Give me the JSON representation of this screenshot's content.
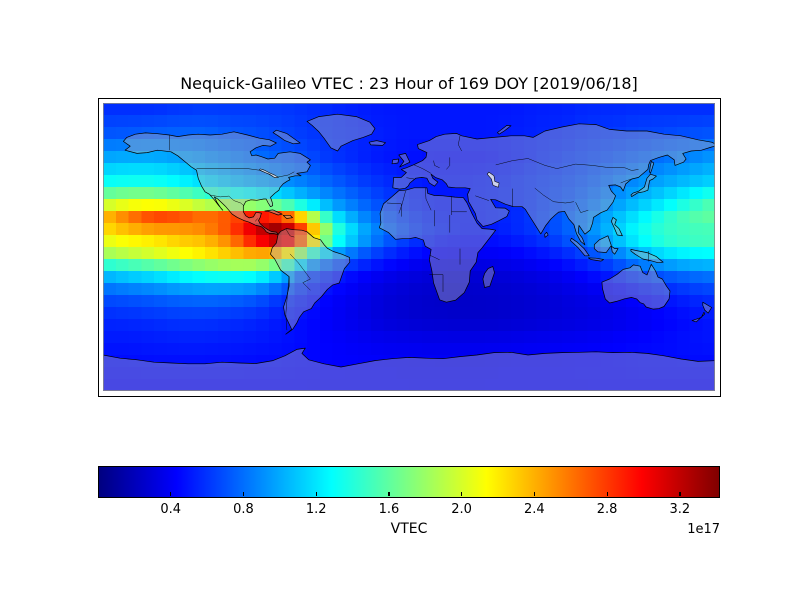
{
  "figure": {
    "title": "Nequick-Galileo VTEC : 23 Hour of 169 DOY [2019/06/18]"
  },
  "chart_data": {
    "type": "heatmap",
    "title": "Nequick-Galileo VTEC : 23 Hour of 169 DOY [2019/06/18]",
    "projection": "equirectangular-world-map",
    "lon_range": [
      -180,
      180
    ],
    "lat_range": [
      -90,
      90
    ],
    "cell_size_deg": 7.5,
    "colorbar": {
      "label": "VTEC",
      "offset_label": "1e17",
      "ticks": [
        0.4,
        0.8,
        1.2,
        1.6,
        2.0,
        2.4,
        2.8,
        3.2
      ],
      "vmin": 0.0,
      "vmax": 3.41,
      "colormap": "jet",
      "jet_stops": [
        [
          "0%",
          "#000080"
        ],
        [
          "12.5%",
          "#0000ff"
        ],
        [
          "37.5%",
          "#00ffff"
        ],
        [
          "62.5%",
          "#ffff00"
        ],
        [
          "87.5%",
          "#ff0000"
        ],
        [
          "100%",
          "#800000"
        ]
      ]
    },
    "grid": {
      "value_scale": "1e17",
      "lons": [
        -180,
        -165,
        -150,
        -135,
        -120,
        -105,
        -90,
        -75,
        -60,
        -45,
        -30,
        -15,
        0,
        15,
        30,
        45,
        60,
        75,
        90,
        105,
        120,
        135,
        150,
        165,
        180
      ],
      "lats": [
        90,
        70,
        55,
        40,
        28,
        20,
        12,
        4,
        -6,
        -16,
        -30,
        -45,
        -60,
        -75,
        -90
      ],
      "values": [
        [
          0.55,
          0.55,
          0.55,
          0.58,
          0.6,
          0.6,
          0.6,
          0.6,
          0.58,
          0.55,
          0.52,
          0.5,
          0.5,
          0.5,
          0.5,
          0.5,
          0.5,
          0.52,
          0.53,
          0.55,
          0.55,
          0.56,
          0.56,
          0.55,
          0.55
        ],
        [
          0.72,
          0.73,
          0.75,
          0.76,
          0.76,
          0.72,
          0.7,
          0.66,
          0.62,
          0.58,
          0.55,
          0.52,
          0.5,
          0.5,
          0.5,
          0.5,
          0.52,
          0.54,
          0.56,
          0.6,
          0.62,
          0.65,
          0.67,
          0.7,
          0.72
        ],
        [
          1.0,
          1.02,
          1.02,
          0.98,
          0.92,
          0.86,
          0.8,
          0.75,
          0.68,
          0.6,
          0.55,
          0.5,
          0.48,
          0.46,
          0.46,
          0.46,
          0.5,
          0.55,
          0.6,
          0.65,
          0.7,
          0.76,
          0.82,
          0.88,
          0.95
        ],
        [
          1.32,
          1.35,
          1.35,
          1.28,
          1.18,
          1.08,
          1.0,
          0.93,
          0.85,
          0.75,
          0.65,
          0.58,
          0.53,
          0.5,
          0.5,
          0.52,
          0.55,
          0.6,
          0.65,
          0.72,
          0.82,
          0.92,
          1.0,
          1.08,
          1.15
        ],
        [
          1.85,
          1.95,
          1.95,
          1.85,
          1.7,
          1.55,
          1.45,
          1.3,
          1.1,
          0.92,
          0.78,
          0.65,
          0.55,
          0.5,
          0.5,
          0.52,
          0.55,
          0.6,
          0.68,
          0.78,
          0.92,
          1.06,
          1.2,
          1.38,
          1.55
        ],
        [
          2.35,
          2.6,
          2.8,
          2.75,
          2.6,
          2.7,
          2.9,
          2.7,
          2.0,
          1.2,
          0.9,
          0.72,
          0.6,
          0.52,
          0.5,
          0.52,
          0.55,
          0.62,
          0.72,
          0.85,
          1.02,
          1.2,
          1.4,
          1.55,
          1.62
        ],
        [
          2.25,
          2.4,
          2.5,
          2.5,
          2.55,
          2.75,
          3.15,
          3.35,
          2.6,
          1.5,
          1.05,
          0.8,
          0.65,
          0.55,
          0.5,
          0.5,
          0.55,
          0.62,
          0.72,
          0.88,
          1.08,
          1.3,
          1.45,
          1.5,
          1.52
        ],
        [
          2.05,
          2.15,
          2.2,
          2.3,
          2.35,
          2.55,
          2.95,
          3.25,
          2.5,
          1.4,
          1.0,
          0.75,
          0.6,
          0.5,
          0.46,
          0.46,
          0.5,
          0.56,
          0.66,
          0.82,
          1.02,
          1.25,
          1.42,
          1.48,
          1.5
        ],
        [
          1.75,
          1.85,
          1.95,
          2.05,
          2.15,
          2.25,
          2.3,
          2.15,
          1.3,
          0.9,
          0.7,
          0.55,
          0.46,
          0.4,
          0.38,
          0.38,
          0.4,
          0.45,
          0.52,
          0.62,
          0.78,
          0.98,
          1.12,
          1.2,
          1.22
        ],
        [
          1.1,
          1.18,
          1.25,
          1.35,
          1.42,
          1.45,
          1.4,
          1.15,
          0.7,
          0.55,
          0.45,
          0.38,
          0.33,
          0.3,
          0.29,
          0.29,
          0.31,
          0.34,
          0.39,
          0.46,
          0.55,
          0.66,
          0.76,
          0.82,
          0.86
        ],
        [
          0.7,
          0.73,
          0.76,
          0.8,
          0.82,
          0.8,
          0.75,
          0.62,
          0.5,
          0.42,
          0.36,
          0.3,
          0.27,
          0.25,
          0.24,
          0.25,
          0.26,
          0.28,
          0.31,
          0.34,
          0.38,
          0.44,
          0.5,
          0.56,
          0.6
        ],
        [
          0.55,
          0.56,
          0.58,
          0.6,
          0.6,
          0.58,
          0.55,
          0.5,
          0.45,
          0.4,
          0.35,
          0.3,
          0.27,
          0.26,
          0.25,
          0.25,
          0.26,
          0.28,
          0.3,
          0.32,
          0.35,
          0.38,
          0.42,
          0.46,
          0.5
        ],
        [
          0.5,
          0.5,
          0.51,
          0.52,
          0.52,
          0.51,
          0.5,
          0.48,
          0.45,
          0.42,
          0.4,
          0.38,
          0.37,
          0.36,
          0.36,
          0.36,
          0.37,
          0.38,
          0.39,
          0.4,
          0.42,
          0.44,
          0.46,
          0.48,
          0.49
        ],
        [
          0.45,
          0.45,
          0.46,
          0.46,
          0.46,
          0.46,
          0.45,
          0.45,
          0.44,
          0.43,
          0.42,
          0.42,
          0.41,
          0.41,
          0.41,
          0.41,
          0.42,
          0.42,
          0.43,
          0.44,
          0.44,
          0.45,
          0.45,
          0.45,
          0.45
        ],
        [
          0.42,
          0.42,
          0.42,
          0.42,
          0.42,
          0.42,
          0.42,
          0.42,
          0.42,
          0.42,
          0.42,
          0.42,
          0.42,
          0.42,
          0.42,
          0.42,
          0.42,
          0.42,
          0.42,
          0.42,
          0.42,
          0.42,
          0.42,
          0.42,
          0.42
        ]
      ]
    }
  }
}
